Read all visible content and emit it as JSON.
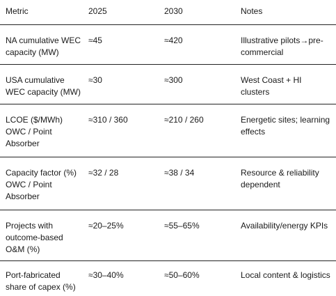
{
  "table": {
    "headers": [
      "Metric",
      "2025",
      "2030",
      "Notes"
    ],
    "rows": [
      {
        "metric": "NA cumulative WEC capacity (MW)",
        "y2025": "≈45",
        "y2030": "≈420",
        "notes": "Illustrative pilots→pre-commercial"
      },
      {
        "metric": "USA cumulative WEC capacity (MW)",
        "y2025": "≈30",
        "y2030": "≈300",
        "notes": "West Coast + HI clusters"
      },
      {
        "metric": "LCOE ($/MWh) OWC / Point Absorber",
        "y2025": "≈310 / 360",
        "y2030": "≈210 / 260",
        "notes": "Energetic sites; learning effects"
      },
      {
        "metric": "Capacity factor (%) OWC / Point Absorber",
        "y2025": "≈32 / 28",
        "y2030": "≈38 / 34",
        "notes": "Resource & reliability dependent"
      },
      {
        "metric": "Projects with outcome-based O&M (%)",
        "y2025": "≈20–25%",
        "y2030": "≈55–65%",
        "notes": "Availability/energy KPIs"
      },
      {
        "metric": "Port-fabricated share of capex (%)",
        "y2025": "≈30–40%",
        "y2030": "≈50–60%",
        "notes": "Local content & logistics"
      }
    ]
  }
}
